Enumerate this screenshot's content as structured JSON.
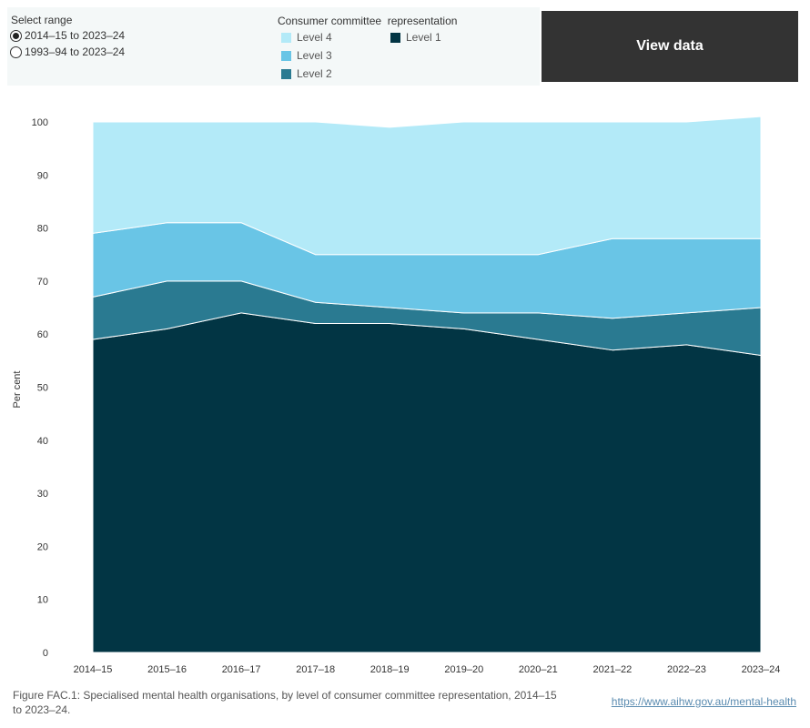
{
  "controls": {
    "range_title": "Select range",
    "range_options": [
      {
        "label": "2014–15 to 2023–24",
        "selected": true
      },
      {
        "label": "1993–94 to 2023–24",
        "selected": false
      }
    ]
  },
  "legend": {
    "title": "Consumer committee  representation",
    "items": [
      {
        "label": "Level 4",
        "color": "#b3eaf8"
      },
      {
        "label": "Level 3",
        "color": "#69c5e6"
      },
      {
        "label": "Level 2",
        "color": "#2a7a91"
      },
      {
        "label": "Level 1",
        "color": "#023544"
      }
    ]
  },
  "view_data_label": "View data",
  "caption": "Figure FAC.1: Specialised mental health organisations, by level of consumer committee representation, 2014–15 to 2023–24.",
  "source_link": "https://www.aihw.gov.au/mental-health",
  "chart_data": {
    "type": "area",
    "stacked": true,
    "ylabel": "Per cent",
    "xlabel": "",
    "ylim": [
      0,
      102
    ],
    "yticks": [
      0,
      10,
      20,
      30,
      40,
      50,
      60,
      70,
      80,
      90,
      100
    ],
    "grid": false,
    "legend_position": "top",
    "categories": [
      "2014–15",
      "2015–16",
      "2016–17",
      "2017–18",
      "2018–19",
      "2019–20",
      "2020–21",
      "2021–22",
      "2022–23",
      "2023–24"
    ],
    "series": [
      {
        "name": "Level 1",
        "color": "#023544",
        "values": [
          59,
          61,
          64,
          62,
          62,
          61,
          59,
          57,
          58,
          56
        ]
      },
      {
        "name": "Level 2",
        "color": "#2a7a91",
        "values": [
          8,
          9,
          6,
          4,
          3,
          3,
          5,
          6,
          6,
          9
        ]
      },
      {
        "name": "Level 3",
        "color": "#69c5e6",
        "values": [
          12,
          11,
          11,
          9,
          10,
          11,
          11,
          15,
          14,
          13
        ]
      },
      {
        "name": "Level 4",
        "color": "#b3eaf8",
        "values": [
          21,
          19,
          19,
          25,
          24,
          25,
          25,
          22,
          22,
          23
        ]
      }
    ]
  }
}
